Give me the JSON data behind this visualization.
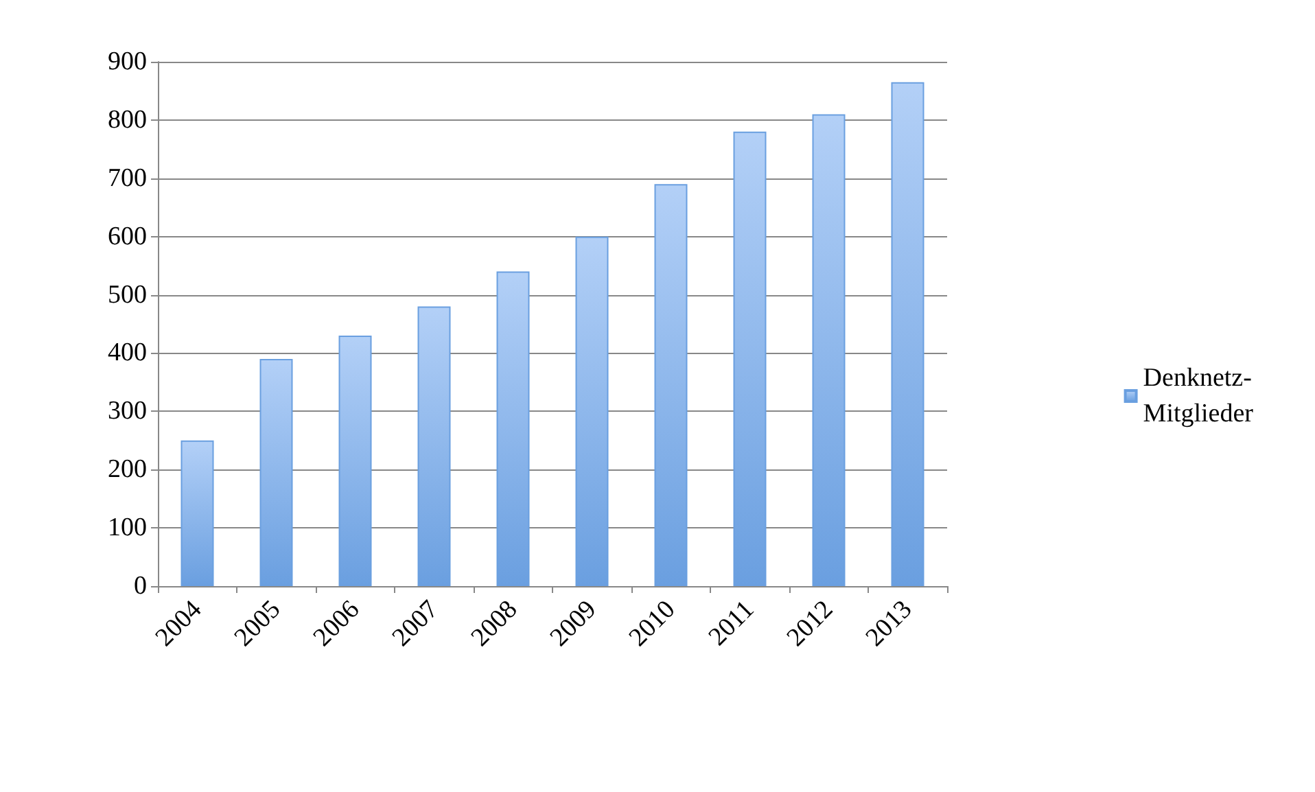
{
  "chart_data": {
    "type": "bar",
    "categories": [
      "2004",
      "2005",
      "2006",
      "2007",
      "2008",
      "2009",
      "2010",
      "2011",
      "2012",
      "2013"
    ],
    "series": [
      {
        "name": "Denknetz-Mitglieder",
        "color": "#6a9fe0",
        "values": [
          250,
          390,
          430,
          480,
          540,
          600,
          690,
          780,
          810,
          865
        ]
      }
    ],
    "ylim": [
      0,
      900
    ],
    "yticks": [
      0,
      100,
      200,
      300,
      400,
      500,
      600,
      700,
      800,
      900
    ],
    "grid": "y",
    "legend": "right"
  }
}
